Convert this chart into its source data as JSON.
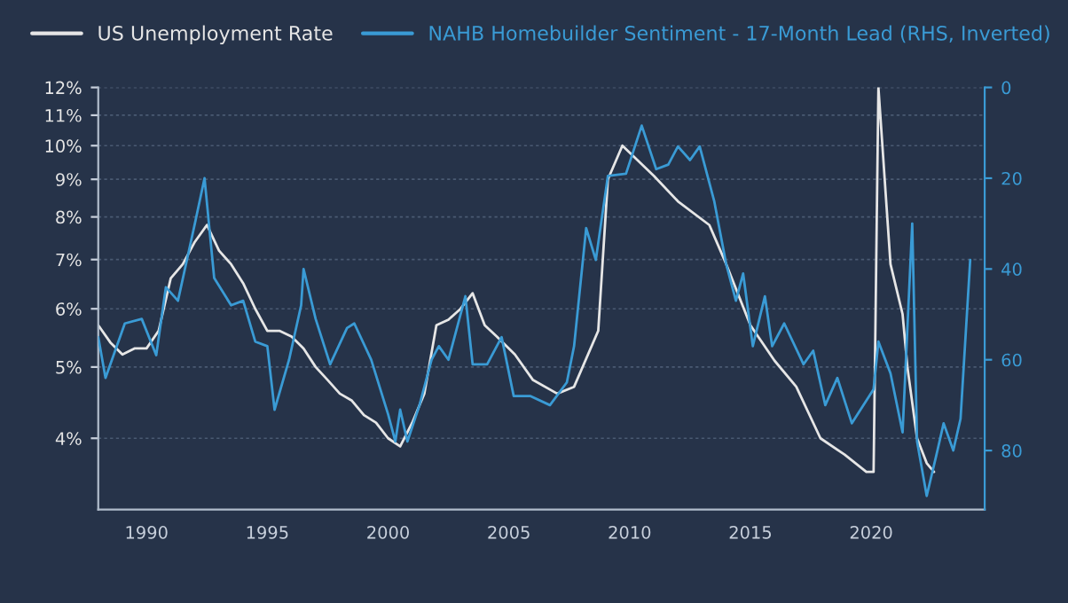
{
  "chart_data": {
    "type": "line",
    "xlim": [
      1988,
      2024.7
    ],
    "xticks": [
      1990,
      1995,
      2000,
      2005,
      2010,
      2015,
      2020
    ],
    "ylim": [
      3.2,
      12
    ],
    "log": "y",
    "yticks": [
      {
        "value": 4,
        "label": "4%"
      },
      {
        "value": 5,
        "label": "5%"
      },
      {
        "value": 6,
        "label": "6%"
      },
      {
        "value": 7,
        "label": "7%"
      },
      {
        "value": 8,
        "label": "8%"
      },
      {
        "value": 9,
        "label": "9%"
      },
      {
        "value": 10,
        "label": "10%"
      },
      {
        "value": 11,
        "label": "11%"
      },
      {
        "value": 12,
        "label": "12%"
      }
    ],
    "y2lim": [
      93,
      0
    ],
    "y2ticks": [
      0,
      20,
      40,
      60,
      80
    ],
    "grid": "y",
    "legend": "top",
    "series": [
      {
        "name": "US Unemployment Rate",
        "color": "#e6e6e6",
        "x": [
          1988.0,
          1988.5,
          1989.0,
          1989.5,
          1990.0,
          1990.5,
          1991.0,
          1991.5,
          1992.0,
          1992.5,
          1993.0,
          1993.5,
          1994.0,
          1994.5,
          1995.0,
          1995.5,
          1996.0,
          1996.5,
          1997.0,
          1997.5,
          1998.0,
          1998.5,
          1999.0,
          1999.5,
          2000.0,
          2000.5,
          2001.0,
          2001.5,
          2002.0,
          2002.5,
          2003.0,
          2003.5,
          2004.0,
          2004.5,
          2005.25,
          2006.0,
          2007.0,
          2007.7,
          2008.7,
          2009.1,
          2009.7,
          2011.0,
          2012.0,
          2013.3,
          2014.0,
          2015.0,
          2016.0,
          2016.9,
          2017.9,
          2018.9,
          2019.8,
          2020.1,
          2020.3,
          2020.8,
          2021.3,
          2021.5,
          2021.9,
          2022.3,
          2022.6
        ],
        "values": [
          5.7,
          5.4,
          5.2,
          5.3,
          5.3,
          5.6,
          6.6,
          6.9,
          7.4,
          7.8,
          7.2,
          6.9,
          6.5,
          6.0,
          5.6,
          5.6,
          5.5,
          5.3,
          5.0,
          4.8,
          4.6,
          4.5,
          4.3,
          4.2,
          4.0,
          3.9,
          4.2,
          4.6,
          5.7,
          5.8,
          6.0,
          6.3,
          5.7,
          5.5,
          5.2,
          4.8,
          4.6,
          4.7,
          5.6,
          9.0,
          10.0,
          9.1,
          8.4,
          7.8,
          6.9,
          5.7,
          5.1,
          4.7,
          4.0,
          3.8,
          3.6,
          3.6,
          12,
          6.9,
          5.9,
          5.0,
          4.0,
          3.7,
          3.6
        ]
      },
      {
        "name": "NAHB Homebuilder Sentiment - 17-Month Lead (RHS, Inverted)",
        "color": "#3a9bd5",
        "axis": "y2",
        "x": [
          1988.0,
          1988.3,
          1989.1,
          1989.8,
          1990.4,
          1990.8,
          1991.3,
          1992.0,
          1992.4,
          1992.8,
          1993.5,
          1994.0,
          1994.5,
          1995.0,
          1995.3,
          1995.9,
          1996.4,
          1996.5,
          1997.0,
          1997.6,
          1998.3,
          1998.6,
          1999.3,
          2000.0,
          2000.3,
          2000.5,
          2000.8,
          2001.3,
          2001.8,
          2002.1,
          2002.5,
          2003.2,
          2003.5,
          2004.1,
          2004.7,
          2005.2,
          2005.9,
          2006.7,
          2007.4,
          2007.7,
          2008.2,
          2008.6,
          2009.1,
          2009.85,
          2010.5,
          2011.1,
          2011.6,
          2012.0,
          2012.5,
          2012.9,
          2013.5,
          2014.0,
          2014.4,
          2014.7,
          2015.1,
          2015.6,
          2015.9,
          2016.4,
          2017.2,
          2017.6,
          2018.1,
          2018.6,
          2019.2,
          2019.8,
          2020.1,
          2020.3,
          2020.8,
          2021.3,
          2021.7,
          2021.9,
          2022.3,
          2022.7,
          2023.0,
          2023.4,
          2023.7,
          2024.1
        ],
        "values": [
          55,
          64,
          52,
          51,
          59,
          44,
          47,
          30,
          20,
          42,
          48,
          47,
          56,
          57,
          71,
          60,
          48,
          40,
          51,
          61,
          53,
          52,
          60,
          72,
          78,
          71,
          78,
          70,
          60,
          57,
          60,
          46,
          61,
          61,
          55,
          68,
          68,
          70,
          65,
          57,
          31,
          38,
          19.5,
          19,
          8.4,
          18,
          17,
          13,
          16,
          13,
          25,
          39,
          47,
          41,
          57,
          46,
          57,
          52,
          61,
          58,
          70,
          64,
          74,
          69,
          66.5,
          56,
          63,
          76,
          30,
          78,
          90,
          81,
          74,
          80,
          73,
          38
        ]
      }
    ]
  }
}
